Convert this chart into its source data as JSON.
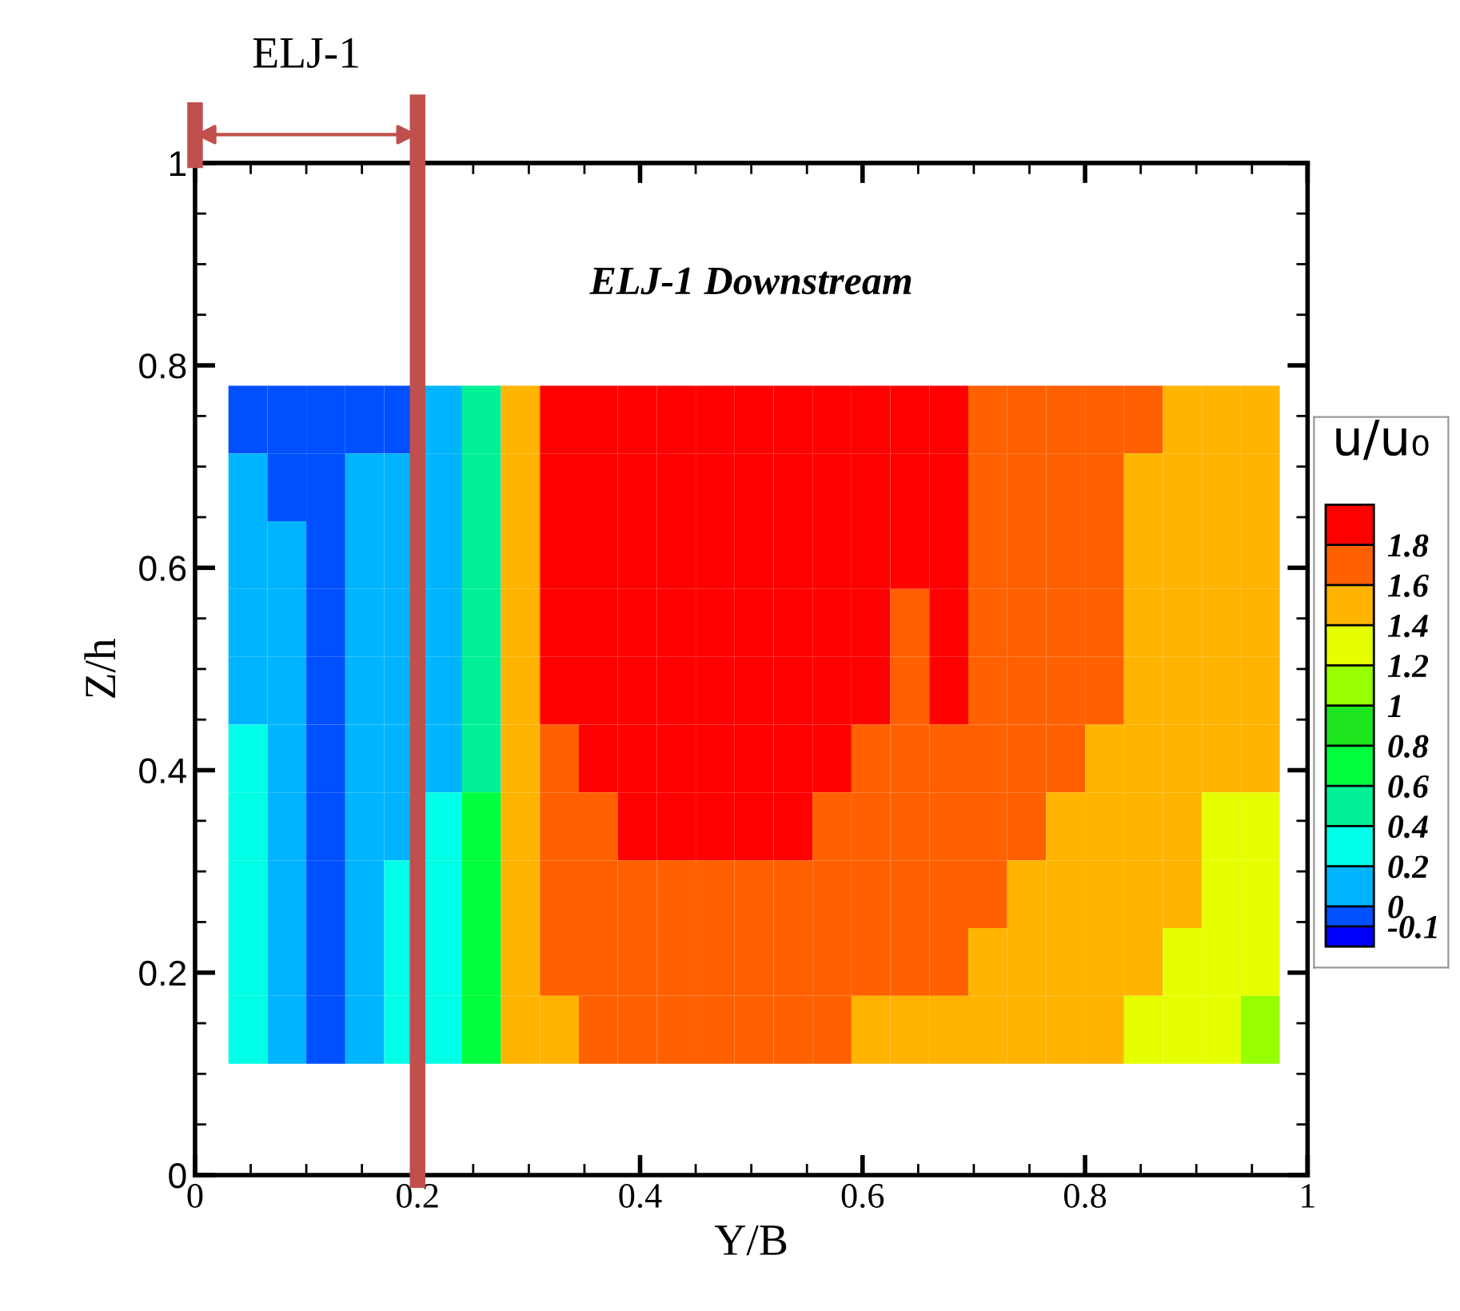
{
  "chart_data": {
    "type": "heatmap",
    "annotations": [
      "ELJ-1 Downstream",
      "ELJ-1"
    ],
    "xlabel": "Y/B",
    "ylabel": "Z/h",
    "clabel": "u/u₀",
    "x": [
      0.0475,
      0.0825,
      0.1175,
      0.1525,
      0.1875,
      0.2225,
      0.2575,
      0.2925,
      0.3275,
      0.3625,
      0.3975,
      0.4325,
      0.4675,
      0.5025,
      0.5375,
      0.5725,
      0.6075,
      0.6425,
      0.6775,
      0.7125,
      0.7475,
      0.7825,
      0.8175,
      0.8525,
      0.8875,
      0.9225,
      0.9575
    ],
    "y": [
      0.7465,
      0.6795,
      0.6125,
      0.5455,
      0.4785,
      0.4115,
      0.3445,
      0.2775,
      0.2105,
      0.1435
    ],
    "cells": [
      [
        -0.05,
        -0.05,
        -0.05,
        -0.05,
        -0.05,
        0.1,
        0.5,
        1.5,
        1.9,
        1.9,
        1.9,
        1.9,
        1.9,
        1.9,
        1.9,
        1.9,
        1.9,
        1.9,
        1.9,
        1.7,
        1.7,
        1.7,
        1.7,
        1.7,
        1.5,
        1.5,
        1.5
      ],
      [
        0.1,
        -0.05,
        -0.05,
        0.1,
        0.1,
        0.1,
        0.5,
        1.5,
        1.9,
        1.9,
        1.9,
        1.9,
        1.9,
        1.9,
        1.9,
        1.9,
        1.9,
        1.9,
        1.9,
        1.7,
        1.7,
        1.7,
        1.7,
        1.5,
        1.5,
        1.5,
        1.5
      ],
      [
        0.1,
        0.1,
        -0.05,
        0.1,
        0.1,
        0.1,
        0.5,
        1.5,
        1.9,
        1.9,
        1.9,
        1.9,
        1.9,
        1.9,
        1.9,
        1.9,
        1.9,
        1.9,
        1.9,
        1.7,
        1.7,
        1.7,
        1.7,
        1.5,
        1.5,
        1.5,
        1.5
      ],
      [
        0.1,
        0.1,
        -0.05,
        0.1,
        0.1,
        0.1,
        0.5,
        1.5,
        1.9,
        1.9,
        1.9,
        1.9,
        1.9,
        1.9,
        1.9,
        1.9,
        1.9,
        1.7,
        1.9,
        1.7,
        1.7,
        1.7,
        1.7,
        1.5,
        1.5,
        1.5,
        1.5
      ],
      [
        0.1,
        0.1,
        -0.05,
        0.1,
        0.1,
        0.1,
        0.5,
        1.5,
        1.9,
        1.9,
        1.9,
        1.9,
        1.9,
        1.9,
        1.9,
        1.9,
        1.9,
        1.7,
        1.9,
        1.7,
        1.7,
        1.7,
        1.7,
        1.5,
        1.5,
        1.5,
        1.5
      ],
      [
        0.3,
        0.1,
        -0.05,
        0.1,
        0.1,
        0.1,
        0.5,
        1.5,
        1.7,
        1.9,
        1.9,
        1.9,
        1.9,
        1.9,
        1.9,
        1.9,
        1.7,
        1.7,
        1.7,
        1.7,
        1.7,
        1.7,
        1.5,
        1.5,
        1.5,
        1.5,
        1.5
      ],
      [
        0.3,
        0.1,
        -0.05,
        0.1,
        0.1,
        0.3,
        0.7,
        1.5,
        1.7,
        1.7,
        1.9,
        1.9,
        1.9,
        1.9,
        1.9,
        1.7,
        1.7,
        1.7,
        1.7,
        1.7,
        1.7,
        1.5,
        1.5,
        1.5,
        1.5,
        1.3,
        1.3
      ],
      [
        0.3,
        0.1,
        -0.05,
        0.1,
        0.3,
        0.3,
        0.7,
        1.5,
        1.7,
        1.7,
        1.7,
        1.7,
        1.7,
        1.7,
        1.7,
        1.7,
        1.7,
        1.7,
        1.7,
        1.7,
        1.5,
        1.5,
        1.5,
        1.5,
        1.5,
        1.3,
        1.3
      ],
      [
        0.3,
        0.1,
        -0.05,
        0.1,
        0.3,
        0.3,
        0.7,
        1.5,
        1.7,
        1.7,
        1.7,
        1.7,
        1.7,
        1.7,
        1.7,
        1.7,
        1.7,
        1.7,
        1.7,
        1.5,
        1.5,
        1.5,
        1.5,
        1.5,
        1.3,
        1.3,
        1.3
      ],
      [
        0.3,
        0.1,
        -0.05,
        0.1,
        0.3,
        0.3,
        0.7,
        1.5,
        1.5,
        1.7,
        1.7,
        1.7,
        1.7,
        1.7,
        1.7,
        1.7,
        1.5,
        1.5,
        1.5,
        1.5,
        1.5,
        1.5,
        1.5,
        1.3,
        1.3,
        1.3,
        1.1
      ]
    ],
    "colors": [
      "#0000ff",
      "#0050ff",
      "#00b4ff",
      "#00ffe6",
      "#00f096",
      "#00ff3c",
      "#1ee61e",
      "#96ff00",
      "#e6ff00",
      "#ffb400",
      "#ff6000",
      "#ff0000"
    ],
    "clim": [
      -0.2,
      2
    ],
    "cticks": [
      {
        "value": -0.2,
        "label": null
      },
      -0.1,
      0,
      0.2,
      0.4,
      0.6,
      0.8,
      1,
      1.2,
      1.4,
      1.6,
      1.8,
      {
        "value": 2,
        "label": null
      }
    ],
    "xlim": [
      0,
      1
    ],
    "xticks": [
      0,
      0.2,
      0.4,
      0.6,
      0.8,
      1
    ],
    "ylim": [
      0,
      1
    ],
    "yticks": [
      0,
      0.2,
      0.4,
      0.6,
      0.8,
      1
    ],
    "ref_lines": [
      {
        "axis": "x",
        "value": 0.2,
        "color": "#c0504d"
      }
    ],
    "grid": false
  }
}
